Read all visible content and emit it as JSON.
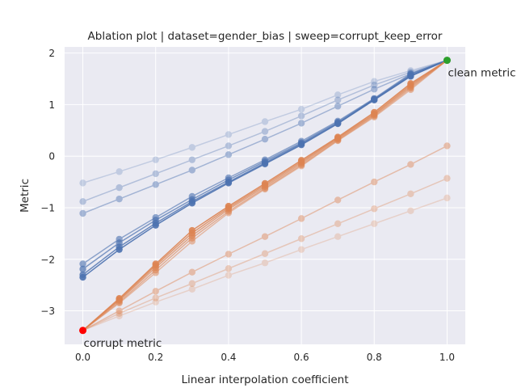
{
  "chart_data": {
    "type": "line",
    "title": "Ablation plot | dataset=gender_bias | sweep=corrupt_keep_error",
    "xlabel": "Linear interpolation coefficient",
    "ylabel": "Metric",
    "xlim": [
      -0.05,
      1.05
    ],
    "ylim": [
      -3.65,
      2.12
    ],
    "xticks": [
      0.0,
      0.2,
      0.4,
      0.6,
      0.8,
      1.0
    ],
    "xtick_labels": [
      "0.0",
      "0.2",
      "0.4",
      "0.6",
      "0.8",
      "1.0"
    ],
    "yticks": [
      -3,
      -2,
      -1,
      0,
      1,
      2
    ],
    "ytick_labels": [
      "−3",
      "−2",
      "−1",
      "0",
      "1",
      "2"
    ],
    "grid": true,
    "background": "#eaeaf2",
    "x": [
      0.0,
      0.1,
      0.2,
      0.3,
      0.4,
      0.5,
      0.6,
      0.7,
      0.8,
      0.9,
      1.0
    ],
    "series": [
      {
        "color": "#4c72b0",
        "opacity": 0.25,
        "values": [
          -0.52,
          -0.3,
          -0.07,
          0.17,
          0.42,
          0.67,
          0.91,
          1.19,
          1.45,
          1.66,
          1.86
        ]
      },
      {
        "color": "#4c72b0",
        "opacity": 0.35,
        "values": [
          -0.88,
          -0.61,
          -0.34,
          -0.07,
          0.2,
          0.48,
          0.78,
          1.09,
          1.38,
          1.63,
          1.86
        ]
      },
      {
        "color": "#4c72b0",
        "opacity": 0.45,
        "values": [
          -1.11,
          -0.83,
          -0.55,
          -0.27,
          0.03,
          0.33,
          0.64,
          0.97,
          1.3,
          1.6,
          1.86
        ]
      },
      {
        "color": "#4c72b0",
        "opacity": 0.6,
        "values": [
          -2.09,
          -1.61,
          -1.19,
          -0.78,
          -0.42,
          -0.07,
          0.29,
          0.68,
          1.12,
          1.6,
          1.86
        ]
      },
      {
        "color": "#4c72b0",
        "opacity": 0.7,
        "values": [
          -2.19,
          -1.68,
          -1.24,
          -0.84,
          -0.46,
          -0.1,
          0.26,
          0.66,
          1.11,
          1.58,
          1.86
        ]
      },
      {
        "color": "#4c72b0",
        "opacity": 0.8,
        "values": [
          -2.3,
          -1.76,
          -1.3,
          -0.88,
          -0.5,
          -0.13,
          0.24,
          0.64,
          1.1,
          1.56,
          1.86
        ]
      },
      {
        "color": "#4c72b0",
        "opacity": 0.9,
        "values": [
          -2.35,
          -1.81,
          -1.34,
          -0.91,
          -0.52,
          -0.15,
          0.22,
          0.63,
          1.09,
          1.55,
          1.86
        ]
      },
      {
        "color": "#dd8452",
        "opacity": 0.9,
        "values": [
          -3.38,
          -2.76,
          -2.09,
          -1.44,
          -0.97,
          -0.53,
          -0.08,
          0.37,
          0.85,
          1.41,
          1.86
        ]
      },
      {
        "color": "#dd8452",
        "opacity": 0.8,
        "values": [
          -3.38,
          -2.78,
          -2.12,
          -1.49,
          -1.0,
          -0.56,
          -0.11,
          0.35,
          0.82,
          1.38,
          1.86
        ]
      },
      {
        "color": "#dd8452",
        "opacity": 0.7,
        "values": [
          -3.38,
          -2.8,
          -2.16,
          -1.54,
          -1.03,
          -0.59,
          -0.14,
          0.33,
          0.8,
          1.35,
          1.86
        ]
      },
      {
        "color": "#dd8452",
        "opacity": 0.6,
        "values": [
          -3.38,
          -2.83,
          -2.21,
          -1.59,
          -1.07,
          -0.62,
          -0.17,
          0.31,
          0.78,
          1.32,
          1.86
        ]
      },
      {
        "color": "#dd8452",
        "opacity": 0.5,
        "values": [
          -3.38,
          -2.85,
          -2.26,
          -1.65,
          -1.1,
          -0.64,
          -0.19,
          0.3,
          0.76,
          1.29,
          1.86
        ]
      },
      {
        "color": "#dd8452",
        "opacity": 0.45,
        "values": [
          -3.38,
          -3.0,
          -2.62,
          -2.25,
          -1.9,
          -1.56,
          -1.21,
          -0.85,
          -0.5,
          -0.16,
          0.2
        ]
      },
      {
        "color": "#dd8452",
        "opacity": 0.35,
        "values": [
          -3.38,
          -3.05,
          -2.75,
          -2.47,
          -2.18,
          -1.89,
          -1.6,
          -1.31,
          -1.02,
          -0.73,
          -0.43
        ]
      },
      {
        "color": "#dd8452",
        "opacity": 0.25,
        "values": [
          -3.38,
          -3.1,
          -2.83,
          -2.58,
          -2.31,
          -2.07,
          -1.81,
          -1.56,
          -1.31,
          -1.06,
          -0.81
        ]
      }
    ],
    "markers": [
      {
        "label": "clean metric",
        "x": 1.0,
        "y": 1.86,
        "color": "#2ca02c"
      },
      {
        "label": "corrupt metric",
        "x": 0.0,
        "y": -3.38,
        "color": "#ff0000"
      }
    ]
  }
}
